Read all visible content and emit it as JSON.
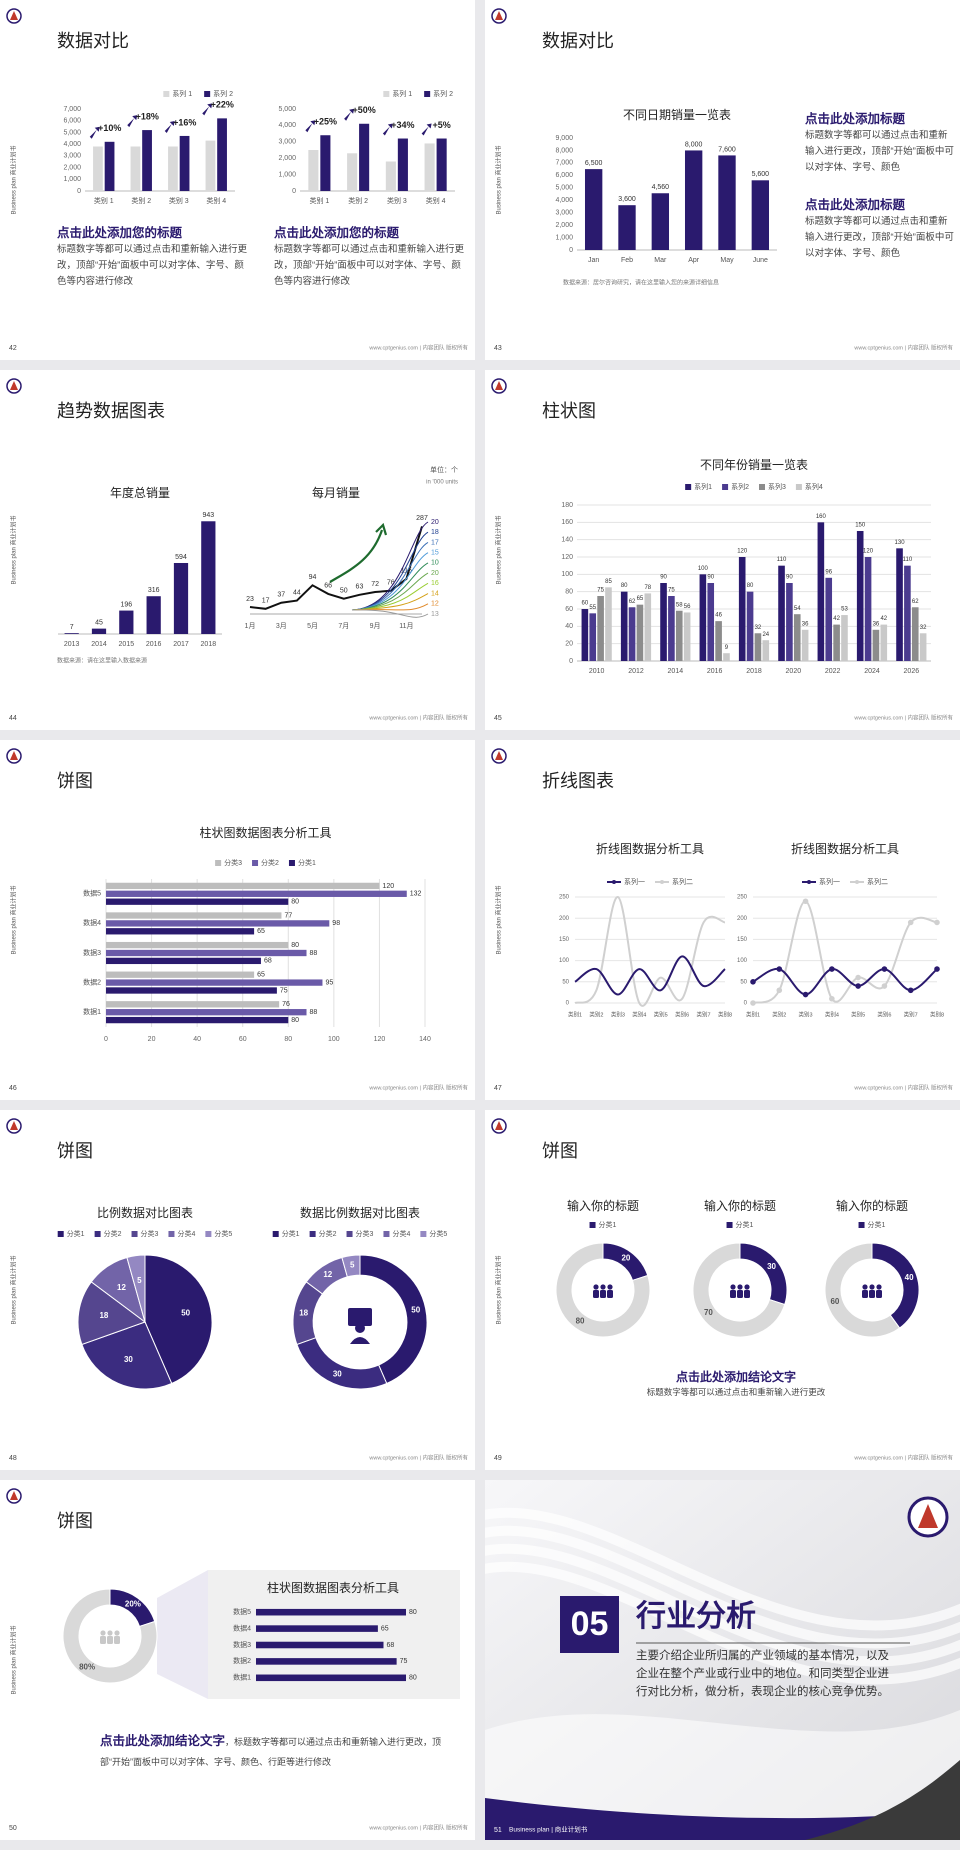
{
  "side_label": "Business plan 商业计划书",
  "footer": "www.cptgenius.com | 内容团队 版权所有",
  "slides": [
    {
      "page": "42",
      "title": "数据对比",
      "charts": [
        {
          "type": "bar",
          "categories": [
            "类别 1",
            "类别 2",
            "类别 3",
            "类别 4"
          ],
          "series": [
            {
              "name": "系列 1",
              "color": "#d9d9d9",
              "values": [
                3800,
                3800,
                3800,
                4300
              ]
            },
            {
              "name": "系列 2",
              "color": "#2a1a6e",
              "values": [
                4200,
                5200,
                4700,
                6200
              ]
            }
          ],
          "ylim": [
            0,
            7000
          ],
          "yticks": [
            0,
            {
              "value": 1000,
              "label": "1,000"
            },
            {
              "value": 2000,
              "label": "2,000"
            },
            {
              "value": 3000,
              "label": "3,000"
            },
            {
              "value": 4000,
              "label": "4,000"
            },
            {
              "value": 5000,
              "label": "5,000"
            },
            {
              "value": 6000,
              "label": "6,000"
            },
            {
              "value": 7000,
              "label": "7,000"
            }
          ],
          "annotations": [
            "+10%",
            "+18%",
            "+16%",
            "+22%"
          ],
          "legend": "top-right",
          "grid": false
        },
        {
          "type": "bar",
          "categories": [
            "类别 1",
            "类别 2",
            "类别 3",
            "类别 4"
          ],
          "series": [
            {
              "name": "系列 1",
              "color": "#d9d9d9",
              "values": [
                2500,
                2300,
                1800,
                2900
              ]
            },
            {
              "name": "系列 2",
              "color": "#2a1a6e",
              "values": [
                3400,
                4100,
                3200,
                3200
              ]
            }
          ],
          "ylim": [
            0,
            5000
          ],
          "yticks": [
            0,
            {
              "value": 1000,
              "label": "1,000"
            },
            {
              "value": 2000,
              "label": "2,000"
            },
            {
              "value": 3000,
              "label": "3,000"
            },
            {
              "value": 4000,
              "label": "4,000"
            },
            {
              "value": 5000,
              "label": "5,000"
            }
          ],
          "annotations": [
            "+25%",
            "+50%",
            "+34%",
            "+5%"
          ],
          "legend": "top-right",
          "grid": false
        }
      ],
      "captions": [
        {
          "heading": "点击此处添加您的标题",
          "body": "标题数字等都可以通过点击和重新输入进行更改，顶部“开始”面板中可以对字体、字号、颜色等内容进行修改"
        },
        {
          "heading": "点击此处添加您的标题",
          "body": "标题数字等都可以通过点击和重新输入进行更改，顶部“开始”面板中可以对字体、字号、颜色等内容进行修改"
        }
      ]
    },
    {
      "page": "43",
      "title": "数据对比",
      "charts": [
        {
          "type": "bar",
          "title": "不同日期销量一览表",
          "categories": [
            "Jan",
            "Feb",
            "Mar",
            "Apr",
            "May",
            "June"
          ],
          "values": [
            6500,
            3600,
            4560,
            8000,
            7600,
            5600
          ],
          "value_labels": [
            "6,500",
            "3,600",
            "4,560",
            "8,000",
            "7,600",
            "5,600"
          ],
          "color": "#2a1a6e",
          "ylim": [
            0,
            9000
          ],
          "yticks": [
            0,
            {
              "value": 1000,
              "label": "1,000"
            },
            {
              "value": 2000,
              "label": "2,000"
            },
            {
              "value": 3000,
              "label": "3,000"
            },
            {
              "value": 4000,
              "label": "4,000"
            },
            {
              "value": 5000,
              "label": "5,000"
            },
            {
              "value": 6000,
              "label": "6,000"
            },
            {
              "value": 7000,
              "label": "7,000"
            },
            {
              "value": 8000,
              "label": "8,000"
            },
            {
              "value": 9000,
              "label": "9,000"
            }
          ],
          "grid": false,
          "source": "数据来源：居尔咨询研究，请在这里输入您的来源详细信息"
        }
      ],
      "captions": [
        {
          "heading": "点击此处添加标题",
          "body": "标题数字等都可以通过点击和重新输入进行更改，顶部“开始”面板中可以对字体、字号、颜色"
        },
        {
          "heading": "点击此处添加标题",
          "body": "标题数字等都可以通过点击和重新输入进行更改，顶部“开始”面板中可以对字体、字号、颜色"
        }
      ]
    },
    {
      "page": "44",
      "title": "趋势数据图表",
      "charts": [
        {
          "type": "bar",
          "title": "年度总销量",
          "categories": [
            "2013",
            "2014",
            "2015",
            "2016",
            "2017",
            "2018"
          ],
          "values": [
            7,
            45,
            196,
            316,
            594,
            943
          ],
          "color": "#2a1a6e",
          "data_labels": true,
          "source": "数据来源：请在这里输入数据来源"
        },
        {
          "type": "line",
          "title": "每月销量",
          "unit": "单位：个",
          "unit_note": "in '000 units",
          "categories": [
            "1月",
            null,
            "3月",
            null,
            "5月",
            null,
            "7月",
            null,
            "9月",
            null,
            "11月",
            null
          ],
          "values": [
            23,
            17,
            37,
            44,
            94,
            66,
            50,
            63,
            72,
            76,
            115,
            287
          ],
          "color": "#111111",
          "data_labels": true,
          "side_values": [
            20,
            18,
            17,
            15,
            10,
            20,
            16,
            14,
            12,
            13
          ],
          "side_colors": [
            "#2a1a6e",
            "#1f3f8f",
            "#3b6fb6",
            "#4f9bd9",
            "#2e8b57",
            "#6aa84f",
            "#9acd32",
            "#d4a017",
            "#e08a2b",
            "#999999"
          ]
        }
      ]
    },
    {
      "page": "45",
      "title": "柱状图",
      "charts": [
        {
          "type": "bar",
          "title": "不同年份销量一览表",
          "categories": [
            "2010",
            "2012",
            "2014",
            "2016",
            "2018",
            "2020",
            "2022",
            "2024",
            "2026"
          ],
          "series": [
            {
              "name": "系列1",
              "color": "#2a1a6e",
              "values": [
                60,
                80,
                90,
                100,
                120,
                110,
                160,
                150,
                130
              ]
            },
            {
              "name": "系列2",
              "color": "#4b3b8f",
              "values": [
                55,
                62,
                75,
                90,
                80,
                90,
                96,
                120,
                110
              ]
            },
            {
              "name": "系列3",
              "color": "#8c8c8c",
              "values": [
                75,
                65,
                58,
                46,
                32,
                54,
                42,
                36,
                62
              ]
            },
            {
              "name": "系列4",
              "color": "#c9c9c9",
              "values": [
                85,
                78,
                56,
                9,
                24,
                36,
                53,
                42,
                32
              ]
            }
          ],
          "ylim": [
            0,
            180
          ],
          "yticks": [
            0,
            20,
            40,
            60,
            80,
            100,
            120,
            140,
            160,
            180
          ],
          "grid": true,
          "data_labels": true,
          "legend": "top"
        }
      ]
    },
    {
      "page": "46",
      "title": "饼图",
      "charts": [
        {
          "type": "hbar",
          "title": "柱状图数据图表分析工具",
          "categories": [
            "数据5",
            "数据4",
            "数据3",
            "数据2",
            "数据1"
          ],
          "series": [
            {
              "name": "分类3",
              "color": "#bdbdbd",
              "values": [
                120,
                77,
                80,
                65,
                76
              ]
            },
            {
              "name": "分类2",
              "color": "#6a5aa8",
              "values": [
                132,
                98,
                88,
                95,
                88
              ]
            },
            {
              "name": "分类1",
              "color": "#2a1a6e",
              "values": [
                80,
                65,
                68,
                75,
                80
              ]
            }
          ],
          "xlim": [
            0,
            140
          ],
          "xticks": [
            0,
            20,
            40,
            60,
            80,
            100,
            120,
            140
          ],
          "grid": true,
          "data_labels": true,
          "legend": "top"
        }
      ]
    },
    {
      "page": "47",
      "title": "折线图表",
      "charts": [
        {
          "type": "line",
          "title": "折线图数据分析工具",
          "categories": [
            "类别1",
            "类别2",
            "类别3",
            "类别4",
            "类别5",
            "类别6",
            "类别7",
            "类别8"
          ],
          "series": [
            {
              "name": "系列一",
              "color": "#2a1a6e",
              "values": [
                50,
                80,
                20,
                80,
                30,
                110,
                40,
                80
              ]
            },
            {
              "name": "系列二",
              "color": "#d0d0d0",
              "values": [
                0,
                30,
                250,
                0,
                60,
                10,
                190,
                190
              ]
            }
          ],
          "ylim": [
            0,
            250
          ],
          "yticks": [
            0,
            50,
            100,
            150,
            200,
            250
          ],
          "grid": true,
          "smooth": true,
          "legend": "top"
        },
        {
          "type": "line",
          "title": "折线图数据分析工具",
          "categories": [
            "类别1",
            "类别2",
            "类别3",
            "类别4",
            "类别5",
            "类别6",
            "类别7",
            "类别8"
          ],
          "series": [
            {
              "name": "系列一",
              "color": "#2a1a6e",
              "values": [
                50,
                80,
                20,
                80,
                40,
                80,
                30,
                80
              ]
            },
            {
              "name": "系列二",
              "color": "#d0d0d0",
              "values": [
                0,
                30,
                240,
                10,
                60,
                40,
                190,
                190
              ]
            }
          ],
          "ylim": [
            0,
            250
          ],
          "yticks": [
            0,
            50,
            100,
            150,
            200,
            250
          ],
          "grid": true,
          "smooth": true,
          "markers": true,
          "legend": "top"
        }
      ]
    },
    {
      "page": "48",
      "title": "饼图",
      "charts": [
        {
          "type": "pie",
          "title": "比例数据对比图表",
          "categories": [
            "分类1",
            "分类2",
            "分类3",
            "分类4",
            "分类5"
          ],
          "values": [
            50,
            30,
            18,
            12,
            5
          ],
          "colors": [
            "#2a1a6e",
            "#3b2c80",
            "#55468f",
            "#7264a8",
            "#9488c2"
          ],
          "legend": "top"
        },
        {
          "type": "donut",
          "title": "数据比例数据对比图表",
          "categories": [
            "分类1",
            "分类2",
            "分类3",
            "分类4",
            "分类5"
          ],
          "values": [
            50,
            30,
            18,
            12,
            5
          ],
          "colors": [
            "#2a1a6e",
            "#3b2c80",
            "#55468f",
            "#7264a8",
            "#9488c2"
          ],
          "legend": "top"
        }
      ]
    },
    {
      "page": "49",
      "title": "饼图",
      "charts": [
        {
          "type": "donut",
          "title": "输入你的标题",
          "categories": [
            "分类1",
            null
          ],
          "values": [
            20,
            80
          ],
          "colors": [
            "#2a1a6e",
            "#d9d9d9"
          ],
          "legend": "top"
        },
        {
          "type": "donut",
          "title": "输入你的标题",
          "categories": [
            "分类1",
            null
          ],
          "values": [
            30,
            70
          ],
          "colors": [
            "#2a1a6e",
            "#d9d9d9"
          ],
          "legend": "top"
        },
        {
          "type": "donut",
          "title": "输入你的标题",
          "categories": [
            "分类1",
            null
          ],
          "values": [
            40,
            60
          ],
          "colors": [
            "#2a1a6e",
            "#d9d9d9"
          ],
          "legend": "top"
        }
      ],
      "conclusion": {
        "heading": "点击此处添加结论文字",
        "body": "标题数字等都可以通过点击和重新输入进行更改"
      }
    },
    {
      "page": "50",
      "title": "饼图",
      "charts": [
        {
          "type": "donut",
          "values": [
            20,
            80
          ],
          "value_labels": [
            "20%",
            "80%"
          ],
          "colors": [
            "#2a1a6e",
            "#d9d9d9"
          ]
        },
        {
          "type": "hbar",
          "title": "柱状图数据图表分析工具",
          "categories": [
            "数据5",
            "数据4",
            "数据3",
            "数据2",
            "数据1"
          ],
          "values": [
            80,
            65,
            68,
            75,
            80
          ],
          "color": "#2a1a6e",
          "data_labels": true
        }
      ],
      "conclusion": {
        "heading": "点击此处添加结论文字",
        "body": "，标题数字等都可以通过点击和重新输入进行更改，顶部“开始”面板中可以对字体、字号、颜色、行距等进行修改"
      }
    },
    {
      "page": "51",
      "section": {
        "number": "05",
        "title": "行业分析",
        "body": "主要介绍企业所归属的产业领域的基本情况，以及企业在整个产业或行业中的地位。和同类型企业进行对比分析，做分析，表现企业的核心竞争优势。",
        "footer": "Business plan | 商业计划书"
      }
    }
  ]
}
